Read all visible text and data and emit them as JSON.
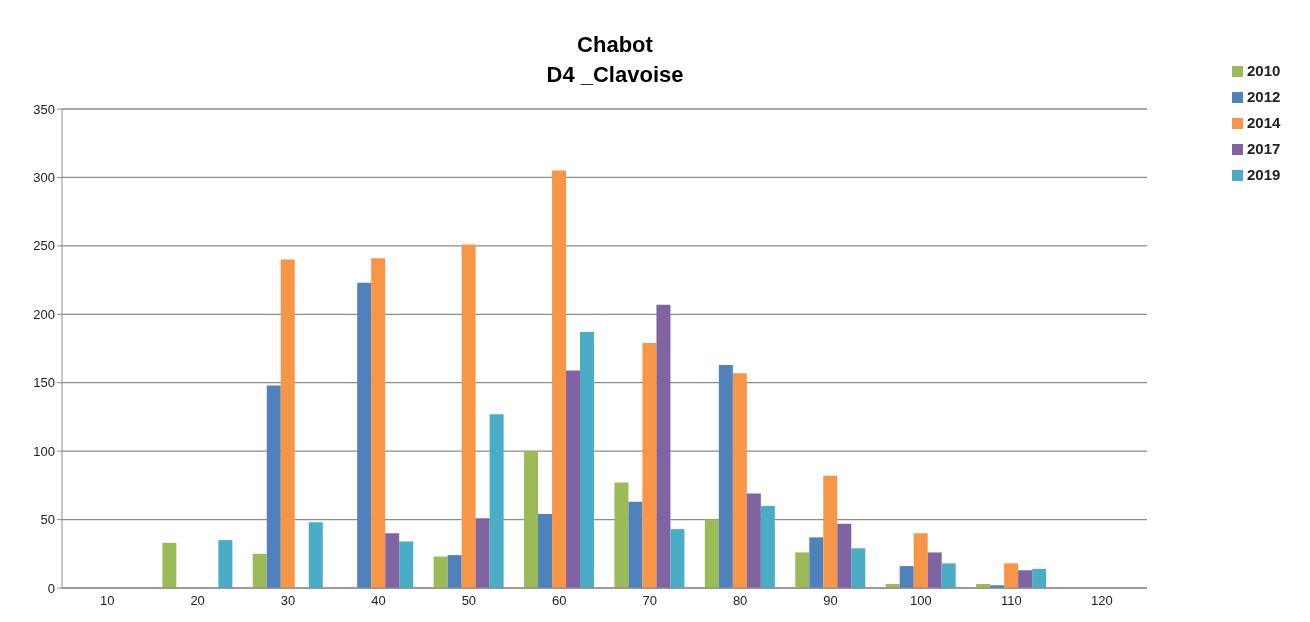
{
  "chart_data": {
    "type": "bar",
    "title": "Chabot",
    "subtitle": "D4 _Clavoise",
    "categories": [
      "10",
      "20",
      "30",
      "40",
      "50",
      "60",
      "70",
      "80",
      "90",
      "100",
      "110",
      "120"
    ],
    "series": [
      {
        "name": "2010",
        "color": "#9bbb59",
        "values": [
          0,
          33,
          25,
          0,
          23,
          100,
          77,
          50,
          26,
          3,
          3,
          0
        ]
      },
      {
        "name": "2012",
        "color": "#4f81bd",
        "values": [
          0,
          0,
          148,
          223,
          24,
          54,
          63,
          163,
          37,
          16,
          2,
          0
        ]
      },
      {
        "name": "2014",
        "color": "#f79646",
        "values": [
          0,
          0,
          240,
          241,
          251,
          305,
          179,
          157,
          82,
          40,
          18,
          0
        ]
      },
      {
        "name": "2017",
        "color": "#8064a2",
        "values": [
          0,
          0,
          0,
          40,
          51,
          159,
          207,
          69,
          47,
          26,
          13,
          0
        ]
      },
      {
        "name": "2019",
        "color": "#4bacc6",
        "values": [
          0,
          35,
          48,
          34,
          127,
          187,
          43,
          60,
          29,
          18,
          14,
          0
        ]
      }
    ],
    "ylim": [
      0,
      350
    ],
    "yticks": [
      0,
      50,
      100,
      150,
      200,
      250,
      300,
      350
    ],
    "grid": "y",
    "legend": "top right"
  }
}
